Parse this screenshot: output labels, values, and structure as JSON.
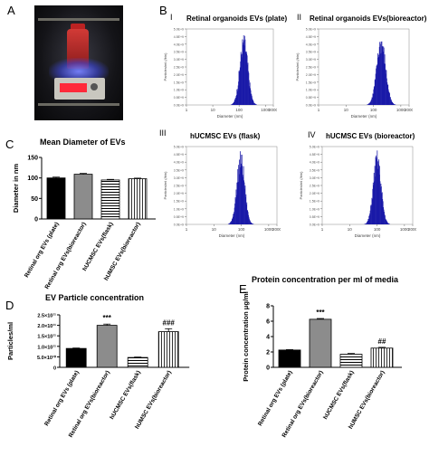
{
  "panel_labels": {
    "a": "A",
    "b": "B",
    "c": "C",
    "d": "D",
    "e": "E"
  },
  "subpanel_labels": {
    "i": "I",
    "ii": "II",
    "iii": "III",
    "iv": "IV"
  },
  "photo_icon": "incubator-bioreactor-photo",
  "chart_data": [
    {
      "id": "hist1",
      "type": "area",
      "title": "Retinal organoids EVs (plate)",
      "xlabel": "Diameter (nm)",
      "ylabel": "Particles/ml (/bin)",
      "xscale": "log",
      "xticks": [
        "1",
        "10",
        "100",
        "1000",
        "2000"
      ],
      "xlim": [
        1,
        2000
      ],
      "peak_x": 150,
      "spread": 0.32,
      "y_tick_count": 10,
      "color": "#1a1aa8"
    },
    {
      "id": "hist2",
      "type": "area",
      "title": "Retinal organoids EVs(bioreactor)",
      "xlabel": "Diameter (nm)",
      "ylabel": "Particles/ml (/bin)",
      "xscale": "log",
      "xticks": [
        "1",
        "10",
        "100",
        "1000",
        "2000"
      ],
      "xlim": [
        1,
        2000
      ],
      "peak_x": 190,
      "spread": 0.34,
      "y_tick_count": 10,
      "color": "#1a1aa8"
    },
    {
      "id": "hist3",
      "type": "area",
      "title": "hUCMSC EVs (flask)",
      "xlabel": "Diameter (nm)",
      "ylabel": "Particles/ml (/bin)",
      "xscale": "log",
      "xticks": [
        "1",
        "10",
        "100",
        "1000",
        "2000"
      ],
      "xlim": [
        1,
        2000
      ],
      "peak_x": 95,
      "spread": 0.3,
      "y_tick_count": 10,
      "color": "#1a1aa8"
    },
    {
      "id": "hist4",
      "type": "area",
      "title": "hUCMSC EVs (bioreactor)",
      "xlabel": "Diameter (nm)",
      "ylabel": "Particles/ml (/bin)",
      "xscale": "log",
      "xticks": [
        "1",
        "10",
        "100",
        "1000",
        "2000"
      ],
      "xlim": [
        1,
        2000
      ],
      "peak_x": 100,
      "spread": 0.3,
      "y_tick_count": 10,
      "color": "#1a1aa8"
    },
    {
      "id": "meanDiameter",
      "type": "bar",
      "title": "Mean Diameter of EVs",
      "ylabel": "Diameter in nm",
      "categories": [
        "Retinal org EVs (plate)",
        "Retinal org EVs(bioreactor)",
        "hUCMSC EVs(flask)",
        "hUMSC EVs(bioreactor)"
      ],
      "values": [
        100,
        109,
        95,
        98
      ],
      "errors": [
        2,
        2,
        1.5,
        1.5
      ],
      "ylim": [
        0,
        150
      ],
      "yticks": [
        "0",
        "50",
        "100",
        "150"
      ],
      "fills": [
        "black",
        "gray",
        "hstripes",
        "vstripes"
      ],
      "annotations": [
        "",
        "",
        "",
        ""
      ]
    },
    {
      "id": "particleConc",
      "type": "bar",
      "title": "EV Particle concentration",
      "ylabel": "Particles/ml",
      "categories": [
        "Retinal org EVs (plate)",
        "Retinal org EVs(bioreactor)",
        "hUCMSC EVs(flask)",
        "hUMSC EVs(bioreactor)"
      ],
      "values": [
        0.9,
        2.0,
        0.47,
        1.7
      ],
      "errors": [
        0.02,
        0.06,
        0.02,
        0.14
      ],
      "ylim": [
        0,
        2.5
      ],
      "yticks": [
        "0",
        "5.0×10¹⁰",
        "1.0×10¹¹",
        "1.5×10¹¹",
        "2.0×10¹¹",
        "2.5×10¹¹"
      ],
      "fills": [
        "black",
        "gray",
        "hstripes",
        "vstripes"
      ],
      "annotations": [
        "",
        "***",
        "",
        "###"
      ]
    },
    {
      "id": "proteinConc",
      "type": "bar",
      "title": "Protein concentration per ml of media",
      "ylabel": "Protein concentration μg/ml",
      "categories": [
        "Retinal org EVs (plate)",
        "Retinal org EVs(bioreactor)",
        "hUCMSC EVs(flask)",
        "hUMSC EVs(bioreactor)"
      ],
      "values": [
        2.25,
        6.25,
        1.7,
        2.5
      ],
      "errors": [
        0.05,
        0.1,
        0.1,
        0.1
      ],
      "ylim": [
        0,
        8
      ],
      "yticks": [
        "0",
        "2",
        "4",
        "6",
        "8"
      ],
      "fills": [
        "black",
        "gray",
        "hstripes",
        "vstripes"
      ],
      "annotations": [
        "",
        "***",
        "",
        "##"
      ]
    }
  ]
}
